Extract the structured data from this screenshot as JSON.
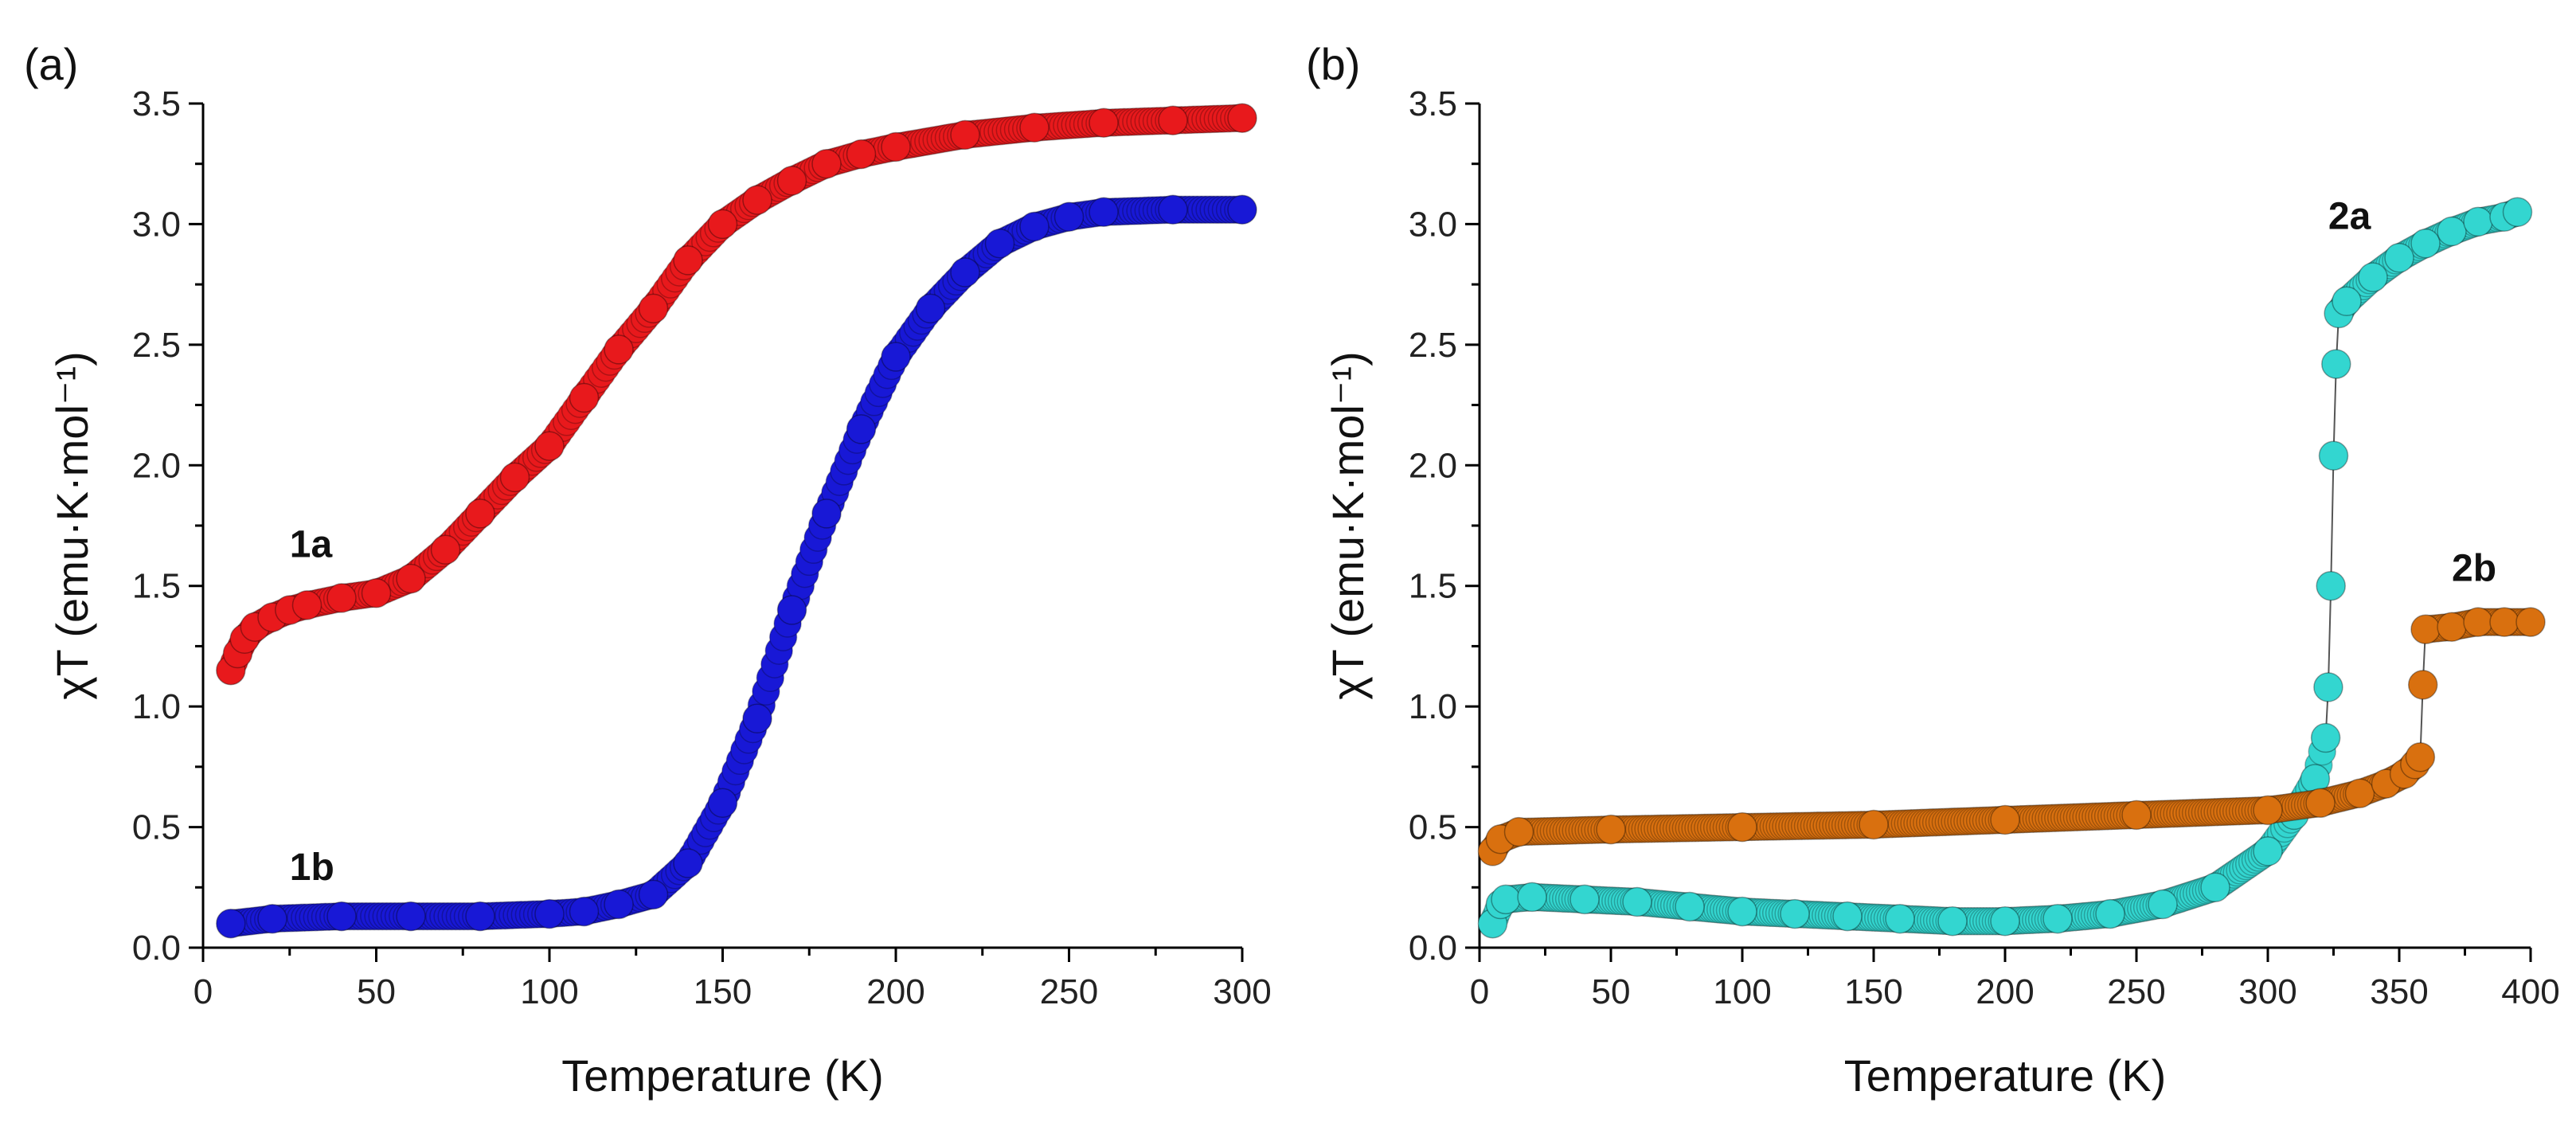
{
  "chart_data": [
    {
      "type": "scatter",
      "panel_label": "(a)",
      "xlabel": "Temperature (K)",
      "ylabel": "χT (emu·K·mol⁻¹)",
      "xlim": [
        0,
        300
      ],
      "ylim": [
        0.0,
        3.5
      ],
      "xticks": [
        "0",
        "50",
        "100",
        "150",
        "200",
        "250",
        "300"
      ],
      "yticks": [
        "0.0",
        "0.5",
        "1.0",
        "1.5",
        "2.0",
        "2.5",
        "3.0",
        "3.5"
      ],
      "series": [
        {
          "name": "1a",
          "color": "#e8191c",
          "connect": false,
          "label_at": [
            25,
            1.62
          ],
          "points": [
            [
              8,
              1.15
            ],
            [
              10,
              1.22
            ],
            [
              12,
              1.28
            ],
            [
              15,
              1.33
            ],
            [
              20,
              1.37
            ],
            [
              25,
              1.4
            ],
            [
              30,
              1.42
            ],
            [
              40,
              1.45
            ],
            [
              50,
              1.47
            ],
            [
              60,
              1.53
            ],
            [
              70,
              1.65
            ],
            [
              80,
              1.8
            ],
            [
              90,
              1.95
            ],
            [
              100,
              2.08
            ],
            [
              110,
              2.28
            ],
            [
              120,
              2.48
            ],
            [
              130,
              2.65
            ],
            [
              140,
              2.85
            ],
            [
              150,
              3.0
            ],
            [
              160,
              3.1
            ],
            [
              170,
              3.18
            ],
            [
              180,
              3.25
            ],
            [
              190,
              3.29
            ],
            [
              200,
              3.32
            ],
            [
              220,
              3.37
            ],
            [
              240,
              3.4
            ],
            [
              260,
              3.42
            ],
            [
              280,
              3.43
            ],
            [
              300,
              3.44
            ]
          ]
        },
        {
          "name": "1b",
          "color": "#1818d6",
          "connect": false,
          "label_at": [
            25,
            0.28
          ],
          "points": [
            [
              8,
              0.1
            ],
            [
              20,
              0.12
            ],
            [
              40,
              0.13
            ],
            [
              60,
              0.13
            ],
            [
              80,
              0.13
            ],
            [
              100,
              0.14
            ],
            [
              110,
              0.15
            ],
            [
              120,
              0.18
            ],
            [
              130,
              0.22
            ],
            [
              140,
              0.35
            ],
            [
              150,
              0.6
            ],
            [
              160,
              0.95
            ],
            [
              170,
              1.4
            ],
            [
              180,
              1.8
            ],
            [
              190,
              2.15
            ],
            [
              200,
              2.45
            ],
            [
              210,
              2.65
            ],
            [
              220,
              2.8
            ],
            [
              230,
              2.92
            ],
            [
              240,
              2.99
            ],
            [
              250,
              3.03
            ],
            [
              260,
              3.05
            ],
            [
              280,
              3.06
            ],
            [
              300,
              3.06
            ]
          ]
        }
      ]
    },
    {
      "type": "scatter",
      "panel_label": "(b)",
      "xlabel": "Temperature (K)",
      "ylabel": "χT (emu·K·mol⁻¹)",
      "xlim": [
        0,
        400
      ],
      "ylim": [
        0.0,
        3.5
      ],
      "xticks": [
        "0",
        "50",
        "100",
        "150",
        "200",
        "250",
        "300",
        "350",
        "400"
      ],
      "yticks": [
        "0.0",
        "0.5",
        "1.0",
        "1.5",
        "2.0",
        "2.5",
        "3.0",
        "3.5"
      ],
      "series": [
        {
          "name": "2a",
          "color": "#33d6d0",
          "connect": true,
          "label_at": [
            323,
            2.98
          ],
          "points": [
            [
              5,
              0.1
            ],
            [
              8,
              0.18
            ],
            [
              10,
              0.2
            ],
            [
              20,
              0.21
            ],
            [
              40,
              0.2
            ],
            [
              60,
              0.19
            ],
            [
              80,
              0.17
            ],
            [
              100,
              0.15
            ],
            [
              120,
              0.14
            ],
            [
              140,
              0.13
            ],
            [
              160,
              0.12
            ],
            [
              180,
              0.11
            ],
            [
              200,
              0.11
            ],
            [
              220,
              0.12
            ],
            [
              240,
              0.14
            ],
            [
              260,
              0.18
            ],
            [
              280,
              0.25
            ],
            [
              300,
              0.4
            ],
            [
              310,
              0.55
            ],
            [
              318,
              0.7
            ],
            [
              322,
              0.87
            ],
            [
              323,
              1.08
            ],
            [
              324,
              1.5
            ],
            [
              325,
              2.04
            ],
            [
              326,
              2.42
            ],
            [
              327,
              2.63
            ],
            [
              330,
              2.68
            ],
            [
              340,
              2.78
            ],
            [
              350,
              2.86
            ],
            [
              360,
              2.92
            ],
            [
              370,
              2.97
            ],
            [
              380,
              3.01
            ],
            [
              390,
              3.03
            ],
            [
              395,
              3.05
            ]
          ]
        },
        {
          "name": "2b",
          "color": "#d9700f",
          "connect": true,
          "label_at": [
            370,
            1.52
          ],
          "points": [
            [
              5,
              0.4
            ],
            [
              8,
              0.45
            ],
            [
              15,
              0.48
            ],
            [
              50,
              0.49
            ],
            [
              100,
              0.5
            ],
            [
              150,
              0.51
            ],
            [
              200,
              0.53
            ],
            [
              250,
              0.55
            ],
            [
              300,
              0.57
            ],
            [
              320,
              0.6
            ],
            [
              335,
              0.64
            ],
            [
              345,
              0.68
            ],
            [
              352,
              0.72
            ],
            [
              356,
              0.76
            ],
            [
              358,
              0.79
            ],
            [
              359,
              1.09
            ],
            [
              360,
              1.32
            ],
            [
              370,
              1.33
            ],
            [
              380,
              1.35
            ],
            [
              390,
              1.35
            ],
            [
              400,
              1.35
            ]
          ]
        }
      ]
    }
  ]
}
